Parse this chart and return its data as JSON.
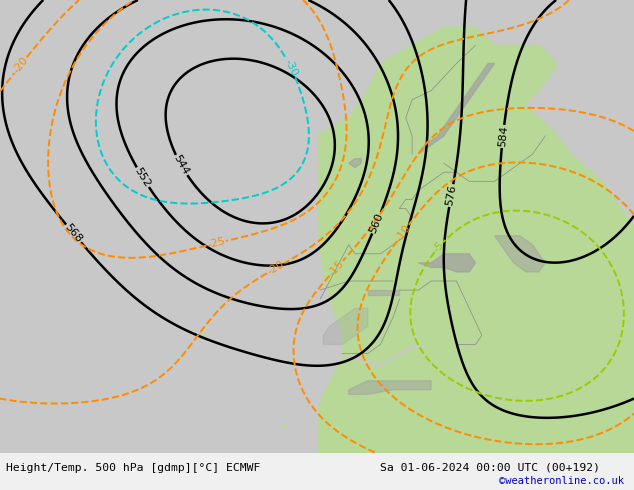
{
  "title_left": "Height/Temp. 500 hPa [gdmp][°C] ECMWF",
  "title_right": "Sa 01-06-2024 00:00 UTC (00+192)",
  "watermark": "©weatheronline.co.uk",
  "sea_color": "#c8c8c8",
  "land_color": "#b8d898",
  "mountain_color": "#a0a0a0",
  "bottom_strip_color": "#f0f0f0",
  "watermark_color": "#0000cc",
  "fig_width": 6.34,
  "fig_height": 4.9,
  "dpi": 100
}
